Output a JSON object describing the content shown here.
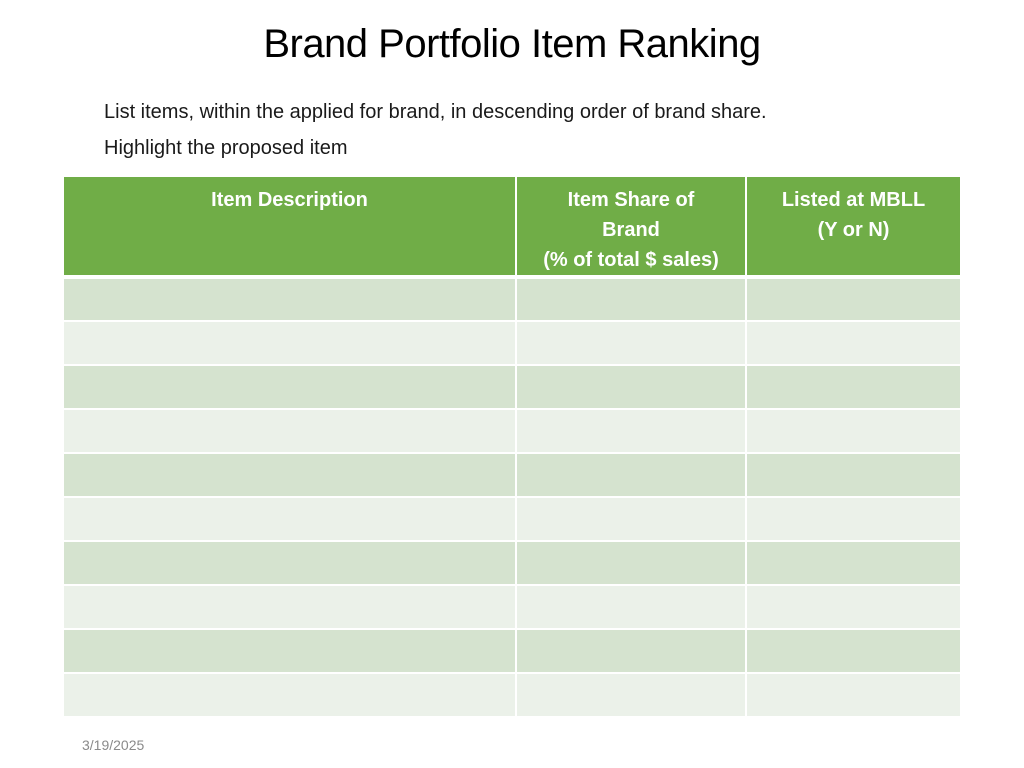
{
  "title": "Brand Portfolio Item Ranking",
  "instructions": [
    "List items, within the applied for brand, in descending order of brand share.",
    "Highlight the proposed item"
  ],
  "table": {
    "headers": [
      {
        "lines": [
          "Item Description"
        ]
      },
      {
        "lines": [
          "Item Share of",
          "Brand",
          "(% of total $ sales)"
        ]
      },
      {
        "lines": [
          "Listed at MBLL",
          "(Y or N)"
        ]
      }
    ],
    "rows": [
      [
        "",
        "",
        ""
      ],
      [
        "",
        "",
        ""
      ],
      [
        "",
        "",
        ""
      ],
      [
        "",
        "",
        ""
      ],
      [
        "",
        "",
        ""
      ],
      [
        "",
        "",
        ""
      ],
      [
        "",
        "",
        ""
      ],
      [
        "",
        "",
        ""
      ],
      [
        "",
        "",
        ""
      ],
      [
        "",
        "",
        ""
      ]
    ],
    "colors": {
      "header": "#70ad47",
      "row_odd": "#d5e3cf",
      "row_even": "#ebf1e9"
    }
  },
  "footer": {
    "date": "3/19/2025"
  }
}
